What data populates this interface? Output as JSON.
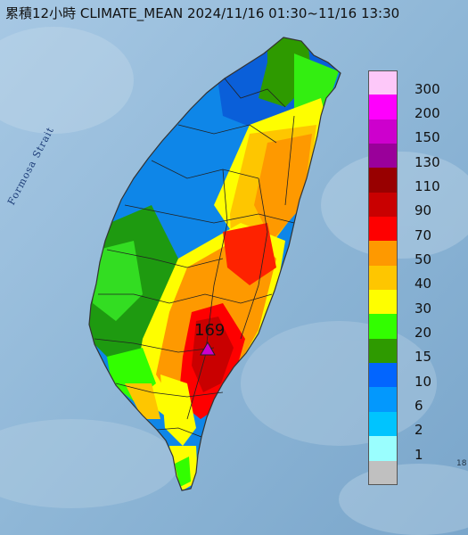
{
  "title": "累積12小時 CLIMATE_MEAN 2024/11/16 01:30~11/16 13:30",
  "sea_label": "Formosa Strait",
  "max_marker": {
    "value": "169",
    "symbol": "triangle",
    "color": "#cc00cc"
  },
  "corner_text": "18",
  "colors": {
    "sea": "#8ab4d4",
    "land_outline": "#333333",
    "county_lines": "#222222"
  },
  "legend": [
    {
      "label": "300",
      "color": "#fdc8f9"
    },
    {
      "label": "200",
      "color": "#fe00fd"
    },
    {
      "label": "150",
      "color": "#cd00cd"
    },
    {
      "label": "130",
      "color": "#9a009a"
    },
    {
      "label": "110",
      "color": "#980000"
    },
    {
      "label": "90",
      "color": "#c90000"
    },
    {
      "label": "70",
      "color": "#fe0000"
    },
    {
      "label": "50",
      "color": "#fe9900"
    },
    {
      "label": "40",
      "color": "#fec600"
    },
    {
      "label": "30",
      "color": "#fefe00"
    },
    {
      "label": "20",
      "color": "#32fe00"
    },
    {
      "label": "15",
      "color": "#2e9a00"
    },
    {
      "label": "10",
      "color": "#0265fe"
    },
    {
      "label": "6",
      "color": "#0398fd"
    },
    {
      "label": "2",
      "color": "#00c4fe"
    },
    {
      "label": "1",
      "color": "#9afefe"
    },
    {
      "label": "",
      "color": "#c0c0c0"
    }
  ]
}
